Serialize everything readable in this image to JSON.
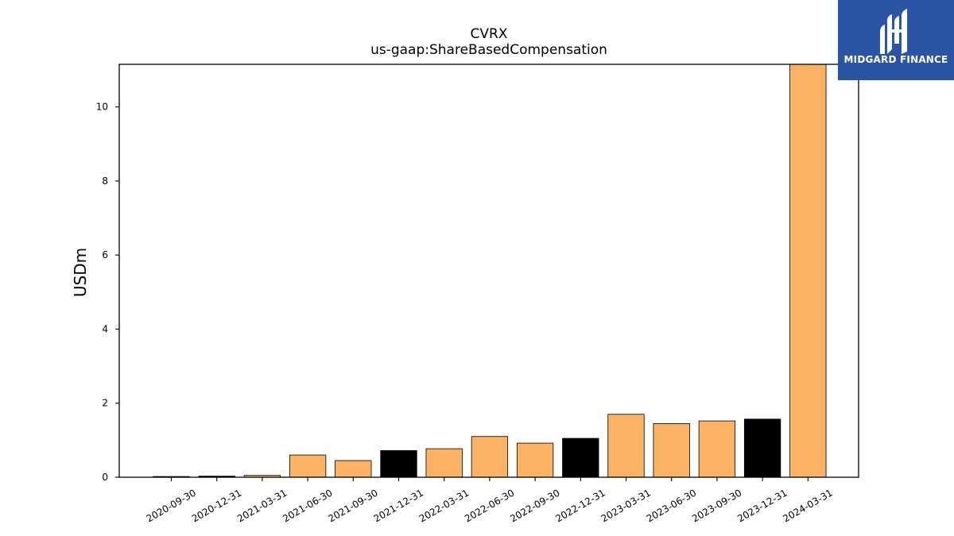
{
  "chart_data": {
    "type": "bar",
    "title": "CVRX",
    "subtitle": "us-gaap:ShareBasedCompensation",
    "ylabel": "USDm",
    "xlabel": "",
    "categories": [
      "2020-09-30",
      "2020-12-31",
      "2021-03-31",
      "2021-06-30",
      "2021-09-30",
      "2021-12-31",
      "2022-03-31",
      "2022-06-30",
      "2022-09-30",
      "2022-12-31",
      "2023-03-31",
      "2023-06-30",
      "2023-09-30",
      "2023-12-31",
      "2024-03-31"
    ],
    "values": [
      0.02,
      0.03,
      0.05,
      0.6,
      0.45,
      0.72,
      0.77,
      1.1,
      0.92,
      1.05,
      1.7,
      1.45,
      1.52,
      1.57,
      11.15
    ],
    "bar_colors": [
      "#000000",
      "#000000",
      "#fbb264",
      "#fbb264",
      "#fbb264",
      "#000000",
      "#fbb264",
      "#fbb264",
      "#fbb264",
      "#000000",
      "#fbb264",
      "#fbb264",
      "#fbb264",
      "#000000",
      "#fbb264"
    ],
    "ylim": [
      0,
      11.15
    ],
    "yticks": [
      0,
      2,
      4,
      6,
      8,
      10
    ],
    "grid": false,
    "legend": "none"
  },
  "logo": {
    "text": "MIDGARD FINANCE",
    "background": "#2b55a4"
  }
}
